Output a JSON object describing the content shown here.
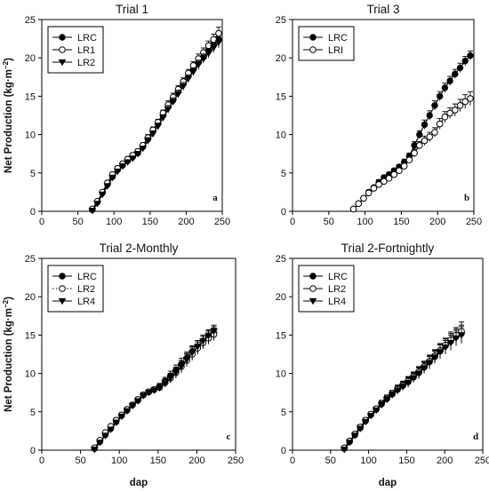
{
  "figure": {
    "y_axis_label": "Net Production (kg·m",
    "y_axis_label_unit_superscript": "−2",
    "y_axis_label_close": ")",
    "x_axis_label": "dap"
  },
  "chart_data": [
    {
      "type": "scatter",
      "title": "Trial 1",
      "panel_label": "a",
      "xlabel": "",
      "ylabel": "Net Production (kg·m−2)",
      "xlim": [
        0,
        250
      ],
      "ylim": [
        0,
        25
      ],
      "xticks": [
        0,
        50,
        100,
        150,
        200,
        250
      ],
      "yticks": [
        0,
        5,
        10,
        15,
        20,
        25
      ],
      "legend_position": "top-left",
      "series": [
        {
          "name": "LRC",
          "marker": "filled-circle",
          "line": "solid",
          "x": [
            70,
            77,
            84,
            91,
            98,
            105,
            112,
            119,
            126,
            133,
            140,
            147,
            154,
            161,
            168,
            175,
            182,
            189,
            196,
            203,
            210,
            217,
            224,
            231,
            238,
            245
          ],
          "y": [
            0.2,
            1.2,
            2.4,
            3.5,
            4.5,
            5.4,
            6.0,
            6.6,
            7.1,
            7.6,
            8.4,
            9.4,
            10.4,
            11.4,
            12.5,
            13.6,
            14.5,
            15.6,
            16.6,
            17.6,
            18.5,
            19.4,
            20.1,
            20.9,
            21.7,
            22.4
          ],
          "err": [
            0.2,
            0.2,
            0.2,
            0.3,
            0.3,
            0.3,
            0.3,
            0.3,
            0.3,
            0.3,
            0.3,
            0.4,
            0.4,
            0.4,
            0.4,
            0.5,
            0.5,
            0.5,
            0.5,
            0.5,
            0.5,
            0.6,
            0.6,
            0.6,
            0.6,
            0.7
          ]
        },
        {
          "name": "LR1",
          "marker": "open-circle",
          "line": "solid",
          "x": [
            70,
            77,
            84,
            91,
            98,
            105,
            112,
            119,
            126,
            133,
            140,
            147,
            154,
            161,
            168,
            175,
            182,
            189,
            196,
            203,
            210,
            217,
            224,
            231,
            238,
            245
          ],
          "y": [
            0.3,
            1.3,
            2.5,
            3.7,
            4.8,
            5.6,
            6.2,
            6.8,
            7.3,
            7.8,
            8.6,
            9.6,
            10.6,
            11.6,
            12.8,
            13.9,
            14.9,
            15.9,
            16.9,
            18.0,
            19.0,
            19.9,
            20.7,
            21.6,
            22.4,
            23.2
          ],
          "err": [
            0.2,
            0.2,
            0.2,
            0.3,
            0.3,
            0.3,
            0.3,
            0.3,
            0.3,
            0.3,
            0.3,
            0.4,
            0.4,
            0.4,
            0.4,
            0.5,
            0.5,
            0.5,
            0.5,
            0.5,
            0.5,
            0.6,
            0.6,
            0.6,
            0.7,
            0.8
          ]
        },
        {
          "name": "LR2",
          "marker": "filled-triangle-down",
          "line": "solid",
          "x": [
            70,
            77,
            84,
            91,
            98,
            105,
            112,
            119,
            126,
            133,
            140,
            147,
            154,
            161,
            168,
            175,
            182,
            189,
            196,
            203,
            210,
            217,
            224,
            231,
            238,
            245
          ],
          "y": [
            0.1,
            1.0,
            2.2,
            3.3,
            4.4,
            5.2,
            5.9,
            6.4,
            6.9,
            7.5,
            8.2,
            9.2,
            10.1,
            11.1,
            12.2,
            13.3,
            14.3,
            15.3,
            16.3,
            17.3,
            18.2,
            19.1,
            19.9,
            20.6,
            21.3,
            22.0
          ],
          "err": [
            0.2,
            0.2,
            0.2,
            0.3,
            0.3,
            0.3,
            0.3,
            0.3,
            0.3,
            0.3,
            0.3,
            0.4,
            0.4,
            0.4,
            0.4,
            0.5,
            0.5,
            0.5,
            0.5,
            0.5,
            0.5,
            0.6,
            0.6,
            0.6,
            0.6,
            0.7
          ]
        }
      ]
    },
    {
      "type": "scatter",
      "title": "Trial 3",
      "panel_label": "b",
      "xlabel": "",
      "ylabel": "",
      "xlim": [
        0,
        250
      ],
      "ylim": [
        0,
        25
      ],
      "xticks": [
        0,
        50,
        100,
        150,
        200,
        250
      ],
      "yticks": [
        0,
        5,
        10,
        15,
        20,
        25
      ],
      "legend_position": "top-left",
      "series": [
        {
          "name": "LRC",
          "marker": "filled-circle",
          "line": "solid",
          "x": [
            84,
            91,
            98,
            105,
            112,
            119,
            126,
            133,
            140,
            147,
            154,
            161,
            168,
            175,
            182,
            189,
            196,
            203,
            210,
            217,
            224,
            231,
            238,
            245
          ],
          "y": [
            0.3,
            1.0,
            1.7,
            2.5,
            3.1,
            3.8,
            4.4,
            4.8,
            5.3,
            5.8,
            6.4,
            7.2,
            8.6,
            10.0,
            11.3,
            12.5,
            13.8,
            15.0,
            16.1,
            17.0,
            17.9,
            18.7,
            19.6,
            20.3
          ],
          "err": [
            0.1,
            0.1,
            0.2,
            0.2,
            0.2,
            0.3,
            0.3,
            0.3,
            0.3,
            0.3,
            0.4,
            0.4,
            0.5,
            0.5,
            0.6,
            0.6,
            0.6,
            0.6,
            0.6,
            0.6,
            0.6,
            0.6,
            0.6,
            0.6
          ]
        },
        {
          "name": "LRI",
          "marker": "open-circle",
          "line": "solid",
          "x": [
            84,
            91,
            98,
            105,
            112,
            119,
            126,
            133,
            140,
            147,
            154,
            161,
            168,
            175,
            182,
            189,
            196,
            203,
            210,
            217,
            224,
            231,
            238,
            245
          ],
          "y": [
            0.3,
            1.0,
            1.7,
            2.4,
            3.0,
            3.5,
            3.9,
            4.3,
            4.8,
            5.3,
            5.9,
            6.7,
            7.6,
            8.6,
            9.2,
            9.7,
            10.3,
            11.4,
            12.3,
            12.8,
            13.2,
            13.8,
            14.3,
            14.7
          ],
          "err": [
            0.1,
            0.1,
            0.2,
            0.2,
            0.2,
            0.3,
            0.3,
            0.3,
            0.3,
            0.3,
            0.4,
            0.4,
            0.5,
            0.5,
            0.6,
            0.6,
            0.6,
            0.7,
            0.7,
            0.7,
            0.8,
            0.8,
            0.9,
            0.9
          ]
        }
      ]
    },
    {
      "type": "scatter",
      "title": "Trial 2-Monthly",
      "panel_label": "c",
      "xlabel": "dap",
      "ylabel": "Net Production (kg·m−2)",
      "xlim": [
        0,
        250
      ],
      "ylim": [
        0,
        25
      ],
      "xticks": [
        0,
        50,
        100,
        150,
        200,
        250
      ],
      "yticks": [
        0,
        5,
        10,
        15,
        20,
        25
      ],
      "legend_position": "top-left",
      "series": [
        {
          "name": "LRC",
          "marker": "filled-circle",
          "line": "solid",
          "x": [
            68,
            75,
            82,
            89,
            96,
            103,
            110,
            117,
            124,
            131,
            138,
            145,
            152,
            159,
            166,
            173,
            180,
            187,
            194,
            201,
            208,
            215,
            222
          ],
          "y": [
            0.2,
            1.1,
            2.0,
            2.8,
            3.7,
            4.5,
            5.2,
            5.9,
            6.5,
            7.2,
            7.6,
            7.9,
            8.3,
            9.0,
            9.7,
            10.4,
            11.2,
            12.0,
            12.8,
            13.5,
            14.2,
            14.8,
            15.3
          ],
          "err": [
            0.2,
            0.2,
            0.2,
            0.2,
            0.3,
            0.3,
            0.3,
            0.3,
            0.3,
            0.3,
            0.3,
            0.3,
            0.4,
            0.5,
            0.6,
            0.7,
            0.8,
            0.8,
            0.8,
            0.8,
            0.8,
            0.8,
            0.8
          ]
        },
        {
          "name": "LR2",
          "marker": "open-circle",
          "line": "dotted",
          "x": [
            68,
            75,
            82,
            89,
            96,
            103,
            110,
            117,
            124,
            131,
            138,
            145,
            152,
            159,
            166,
            173,
            180,
            187,
            194,
            201,
            208,
            215,
            222
          ],
          "y": [
            0.3,
            1.3,
            2.3,
            3.1,
            3.9,
            4.6,
            5.3,
            5.9,
            6.6,
            7.2,
            7.6,
            7.9,
            8.2,
            8.8,
            9.4,
            10.1,
            10.9,
            11.7,
            12.5,
            13.3,
            14.0,
            14.6,
            15.1
          ],
          "err": [
            0.2,
            0.2,
            0.2,
            0.2,
            0.3,
            0.3,
            0.3,
            0.3,
            0.3,
            0.3,
            0.3,
            0.3,
            0.4,
            0.5,
            0.6,
            0.7,
            0.8,
            0.8,
            0.8,
            0.8,
            0.8,
            0.8,
            0.8
          ]
        },
        {
          "name": "LR4",
          "marker": "filled-triangle-down",
          "line": "solid",
          "x": [
            68,
            75,
            82,
            89,
            96,
            103,
            110,
            117,
            124,
            131,
            138,
            145,
            152,
            159,
            166,
            173,
            180,
            187,
            194,
            201,
            208,
            215,
            222
          ],
          "y": [
            0.1,
            1.0,
            1.9,
            2.7,
            3.6,
            4.4,
            5.1,
            5.8,
            6.4,
            7.1,
            7.5,
            7.8,
            8.1,
            8.7,
            9.4,
            10.1,
            10.9,
            11.8,
            12.7,
            13.5,
            14.2,
            14.9,
            15.5
          ],
          "err": [
            0.2,
            0.2,
            0.2,
            0.2,
            0.3,
            0.3,
            0.3,
            0.3,
            0.3,
            0.3,
            0.3,
            0.3,
            0.4,
            0.5,
            0.6,
            0.7,
            0.8,
            0.8,
            0.8,
            0.8,
            0.8,
            0.8,
            0.8
          ]
        }
      ]
    },
    {
      "type": "scatter",
      "title": "Trial 2-Fortnightly",
      "panel_label": "d",
      "xlabel": "dap",
      "ylabel": "",
      "xlim": [
        0,
        250
      ],
      "ylim": [
        0,
        25
      ],
      "xticks": [
        0,
        50,
        100,
        150,
        200,
        250
      ],
      "yticks": [
        0,
        5,
        10,
        15,
        20,
        25
      ],
      "legend_position": "top-left",
      "series": [
        {
          "name": "LRC",
          "marker": "filled-circle",
          "line": "solid",
          "x": [
            68,
            75,
            82,
            89,
            96,
            103,
            110,
            117,
            124,
            131,
            138,
            145,
            152,
            159,
            166,
            173,
            180,
            187,
            194,
            201,
            208,
            215,
            222
          ],
          "y": [
            0.2,
            1.1,
            2.0,
            2.9,
            3.8,
            4.6,
            5.3,
            6.0,
            6.7,
            7.3,
            7.9,
            8.4,
            8.9,
            9.5,
            10.1,
            10.8,
            11.5,
            12.2,
            12.9,
            13.6,
            14.2,
            14.8,
            15.2
          ],
          "err": [
            0.2,
            0.2,
            0.2,
            0.3,
            0.3,
            0.3,
            0.3,
            0.4,
            0.4,
            0.4,
            0.5,
            0.5,
            0.6,
            0.6,
            0.7,
            0.7,
            0.8,
            0.8,
            0.9,
            0.9,
            1.0,
            1.0,
            1.1
          ]
        },
        {
          "name": "LR2",
          "marker": "open-circle",
          "line": "solid",
          "x": [
            68,
            75,
            82,
            89,
            96,
            103,
            110,
            117,
            124,
            131,
            138,
            145,
            152,
            159,
            166,
            173,
            180,
            187,
            194,
            201,
            208,
            215,
            222
          ],
          "y": [
            0.3,
            1.2,
            2.1,
            3.0,
            3.9,
            4.7,
            5.4,
            6.1,
            6.8,
            7.4,
            8.0,
            8.5,
            9.0,
            9.6,
            10.2,
            10.9,
            11.6,
            12.3,
            13.0,
            13.7,
            14.4,
            15.0,
            15.5
          ],
          "err": [
            0.2,
            0.2,
            0.2,
            0.3,
            0.3,
            0.3,
            0.3,
            0.4,
            0.4,
            0.4,
            0.5,
            0.5,
            0.6,
            0.6,
            0.7,
            0.7,
            0.8,
            0.8,
            0.9,
            0.9,
            1.0,
            1.0,
            1.2
          ]
        },
        {
          "name": "LR4",
          "marker": "filled-triangle-down",
          "line": "solid",
          "x": [
            68,
            75,
            82,
            89,
            96,
            103,
            110,
            117,
            124,
            131,
            138,
            145,
            152,
            159,
            166,
            173,
            180,
            187,
            194,
            201,
            208,
            215,
            222
          ],
          "y": [
            0.1,
            1.0,
            1.9,
            2.8,
            3.7,
            4.5,
            5.2,
            5.9,
            6.6,
            7.2,
            7.8,
            8.3,
            8.8,
            9.4,
            10.0,
            10.7,
            11.4,
            12.1,
            12.8,
            13.4,
            14.0,
            14.6,
            15.0
          ],
          "err": [
            0.2,
            0.2,
            0.2,
            0.3,
            0.3,
            0.3,
            0.3,
            0.4,
            0.4,
            0.4,
            0.5,
            0.5,
            0.6,
            0.6,
            0.7,
            0.7,
            0.8,
            0.8,
            0.9,
            0.9,
            1.0,
            1.0,
            1.1
          ]
        }
      ]
    }
  ]
}
